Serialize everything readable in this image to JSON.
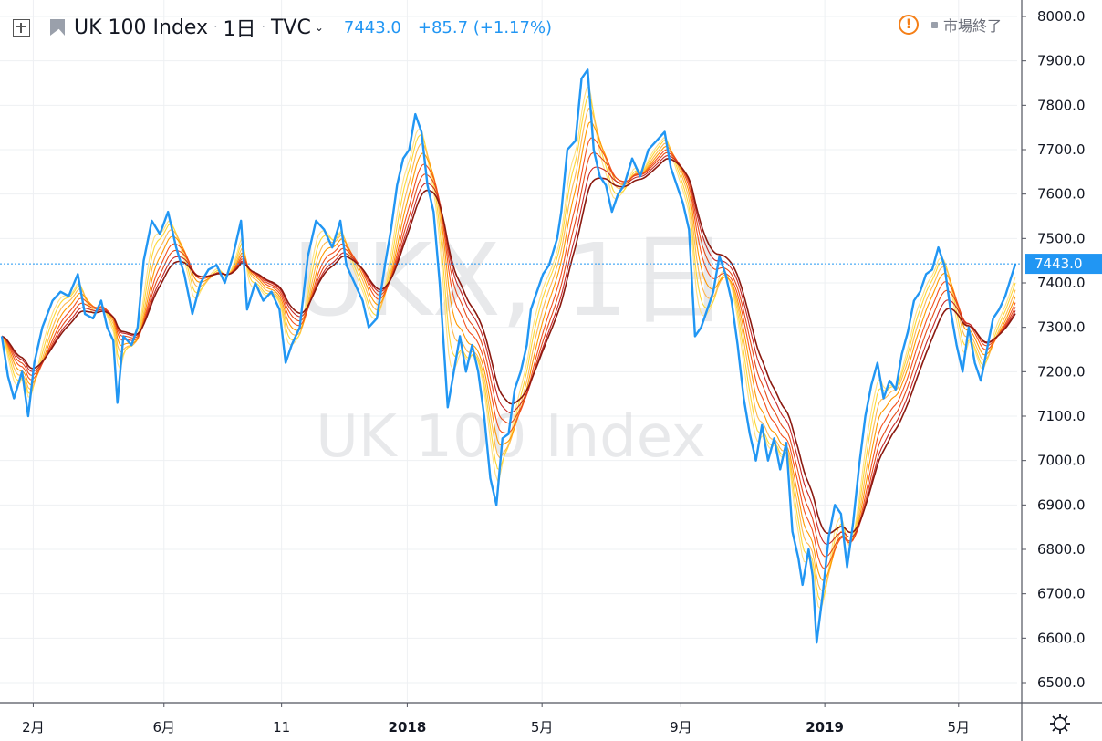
{
  "header": {
    "symbol_name": "UK 100 Index",
    "interval": "1日",
    "exchange": "TVC",
    "price": "7443.0",
    "change": "+85.7 (+1.17%)",
    "market_status": "市場終了",
    "separator": "·"
  },
  "watermark": {
    "line1": "UKX, 1日",
    "line2": "UK 100 Index"
  },
  "colors": {
    "price_line": "#2196f3",
    "ribbon_fast": "#ffe082",
    "ribbon_slow": "#8b1a10",
    "warning": "#f57f17"
  },
  "chart_data": {
    "type": "line",
    "y_axis": {
      "ticks": [
        "8000.0",
        "7900.0",
        "7800.0",
        "7700.0",
        "7600.0",
        "7500.0",
        "7400.0",
        "7300.0",
        "7200.0",
        "7100.0",
        "7000.0",
        "6900.0",
        "6800.0",
        "6700.0",
        "6600.0",
        "6500.0"
      ],
      "ylim": [
        6450,
        8020
      ]
    },
    "x_axis": {
      "ticks": [
        {
          "label": "2月",
          "t": 0.031,
          "bold": false
        },
        {
          "label": "6月",
          "t": 0.16,
          "bold": false
        },
        {
          "label": "11",
          "t": 0.276,
          "bold": false
        },
        {
          "label": "2018",
          "t": 0.4,
          "bold": true
        },
        {
          "label": "5月",
          "t": 0.533,
          "bold": false
        },
        {
          "label": "9月",
          "t": 0.67,
          "bold": false
        },
        {
          "label": "2019",
          "t": 0.812,
          "bold": true
        },
        {
          "label": "5月",
          "t": 0.944,
          "bold": false
        }
      ]
    },
    "last_price_label": "7443.0",
    "last_price_value": 7443,
    "series": [
      {
        "values": [
          [
            0,
            7280
          ],
          [
            0.006,
            7190
          ],
          [
            0.012,
            7140
          ],
          [
            0.02,
            7200
          ],
          [
            0.026,
            7100
          ],
          [
            0.032,
            7220
          ],
          [
            0.04,
            7300
          ],
          [
            0.05,
            7360
          ],
          [
            0.058,
            7380
          ],
          [
            0.066,
            7370
          ],
          [
            0.075,
            7420
          ],
          [
            0.082,
            7330
          ],
          [
            0.09,
            7320
          ],
          [
            0.098,
            7360
          ],
          [
            0.104,
            7300
          ],
          [
            0.11,
            7270
          ],
          [
            0.114,
            7130
          ],
          [
            0.12,
            7280
          ],
          [
            0.128,
            7260
          ],
          [
            0.134,
            7300
          ],
          [
            0.14,
            7450
          ],
          [
            0.148,
            7540
          ],
          [
            0.156,
            7510
          ],
          [
            0.164,
            7560
          ],
          [
            0.172,
            7480
          ],
          [
            0.18,
            7420
          ],
          [
            0.188,
            7330
          ],
          [
            0.196,
            7400
          ],
          [
            0.204,
            7430
          ],
          [
            0.212,
            7440
          ],
          [
            0.22,
            7400
          ],
          [
            0.228,
            7460
          ],
          [
            0.236,
            7540
          ],
          [
            0.242,
            7340
          ],
          [
            0.25,
            7400
          ],
          [
            0.258,
            7360
          ],
          [
            0.266,
            7380
          ],
          [
            0.274,
            7340
          ],
          [
            0.28,
            7220
          ],
          [
            0.286,
            7260
          ],
          [
            0.294,
            7300
          ],
          [
            0.302,
            7460
          ],
          [
            0.31,
            7540
          ],
          [
            0.318,
            7520
          ],
          [
            0.326,
            7480
          ],
          [
            0.334,
            7540
          ],
          [
            0.34,
            7440
          ],
          [
            0.348,
            7400
          ],
          [
            0.356,
            7360
          ],
          [
            0.362,
            7300
          ],
          [
            0.37,
            7320
          ],
          [
            0.378,
            7440
          ],
          [
            0.384,
            7520
          ],
          [
            0.39,
            7620
          ],
          [
            0.396,
            7680
          ],
          [
            0.402,
            7700
          ],
          [
            0.408,
            7780
          ],
          [
            0.414,
            7740
          ],
          [
            0.42,
            7620
          ],
          [
            0.426,
            7560
          ],
          [
            0.432,
            7400
          ],
          [
            0.44,
            7120
          ],
          [
            0.446,
            7200
          ],
          [
            0.452,
            7280
          ],
          [
            0.458,
            7200
          ],
          [
            0.464,
            7260
          ],
          [
            0.47,
            7200
          ],
          [
            0.476,
            7100
          ],
          [
            0.482,
            6960
          ],
          [
            0.488,
            6900
          ],
          [
            0.494,
            7050
          ],
          [
            0.5,
            7060
          ],
          [
            0.506,
            7160
          ],
          [
            0.512,
            7200
          ],
          [
            0.518,
            7260
          ],
          [
            0.522,
            7340
          ],
          [
            0.528,
            7380
          ],
          [
            0.534,
            7420
          ],
          [
            0.54,
            7440
          ],
          [
            0.548,
            7500
          ],
          [
            0.552,
            7560
          ],
          [
            0.558,
            7700
          ],
          [
            0.566,
            7720
          ],
          [
            0.572,
            7860
          ],
          [
            0.578,
            7880
          ],
          [
            0.584,
            7700
          ],
          [
            0.59,
            7640
          ],
          [
            0.596,
            7620
          ],
          [
            0.602,
            7560
          ],
          [
            0.608,
            7600
          ],
          [
            0.614,
            7620
          ],
          [
            0.622,
            7680
          ],
          [
            0.63,
            7640
          ],
          [
            0.638,
            7700
          ],
          [
            0.646,
            7720
          ],
          [
            0.654,
            7740
          ],
          [
            0.66,
            7660
          ],
          [
            0.666,
            7620
          ],
          [
            0.672,
            7580
          ],
          [
            0.678,
            7520
          ],
          [
            0.684,
            7280
          ],
          [
            0.69,
            7300
          ],
          [
            0.696,
            7340
          ],
          [
            0.702,
            7380
          ],
          [
            0.708,
            7460
          ],
          [
            0.714,
            7420
          ],
          [
            0.72,
            7360
          ],
          [
            0.726,
            7260
          ],
          [
            0.732,
            7140
          ],
          [
            0.738,
            7060
          ],
          [
            0.744,
            7000
          ],
          [
            0.75,
            7080
          ],
          [
            0.756,
            7000
          ],
          [
            0.762,
            7050
          ],
          [
            0.768,
            6980
          ],
          [
            0.774,
            7040
          ],
          [
            0.78,
            6840
          ],
          [
            0.786,
            6780
          ],
          [
            0.79,
            6720
          ],
          [
            0.796,
            6800
          ],
          [
            0.8,
            6740
          ],
          [
            0.804,
            6590
          ],
          [
            0.81,
            6700
          ],
          [
            0.816,
            6830
          ],
          [
            0.822,
            6900
          ],
          [
            0.828,
            6880
          ],
          [
            0.834,
            6760
          ],
          [
            0.84,
            6860
          ],
          [
            0.846,
            6990
          ],
          [
            0.852,
            7100
          ],
          [
            0.858,
            7170
          ],
          [
            0.864,
            7220
          ],
          [
            0.87,
            7140
          ],
          [
            0.876,
            7180
          ],
          [
            0.882,
            7160
          ],
          [
            0.888,
            7240
          ],
          [
            0.894,
            7290
          ],
          [
            0.9,
            7360
          ],
          [
            0.906,
            7380
          ],
          [
            0.912,
            7420
          ],
          [
            0.918,
            7430
          ],
          [
            0.924,
            7480
          ],
          [
            0.93,
            7440
          ],
          [
            0.936,
            7340
          ],
          [
            0.942,
            7260
          ],
          [
            0.948,
            7200
          ],
          [
            0.954,
            7300
          ],
          [
            0.96,
            7220
          ],
          [
            0.966,
            7180
          ],
          [
            0.972,
            7250
          ],
          [
            0.978,
            7320
          ],
          [
            0.984,
            7340
          ],
          [
            0.99,
            7370
          ],
          [
            1.0,
            7443
          ]
        ]
      }
    ]
  }
}
